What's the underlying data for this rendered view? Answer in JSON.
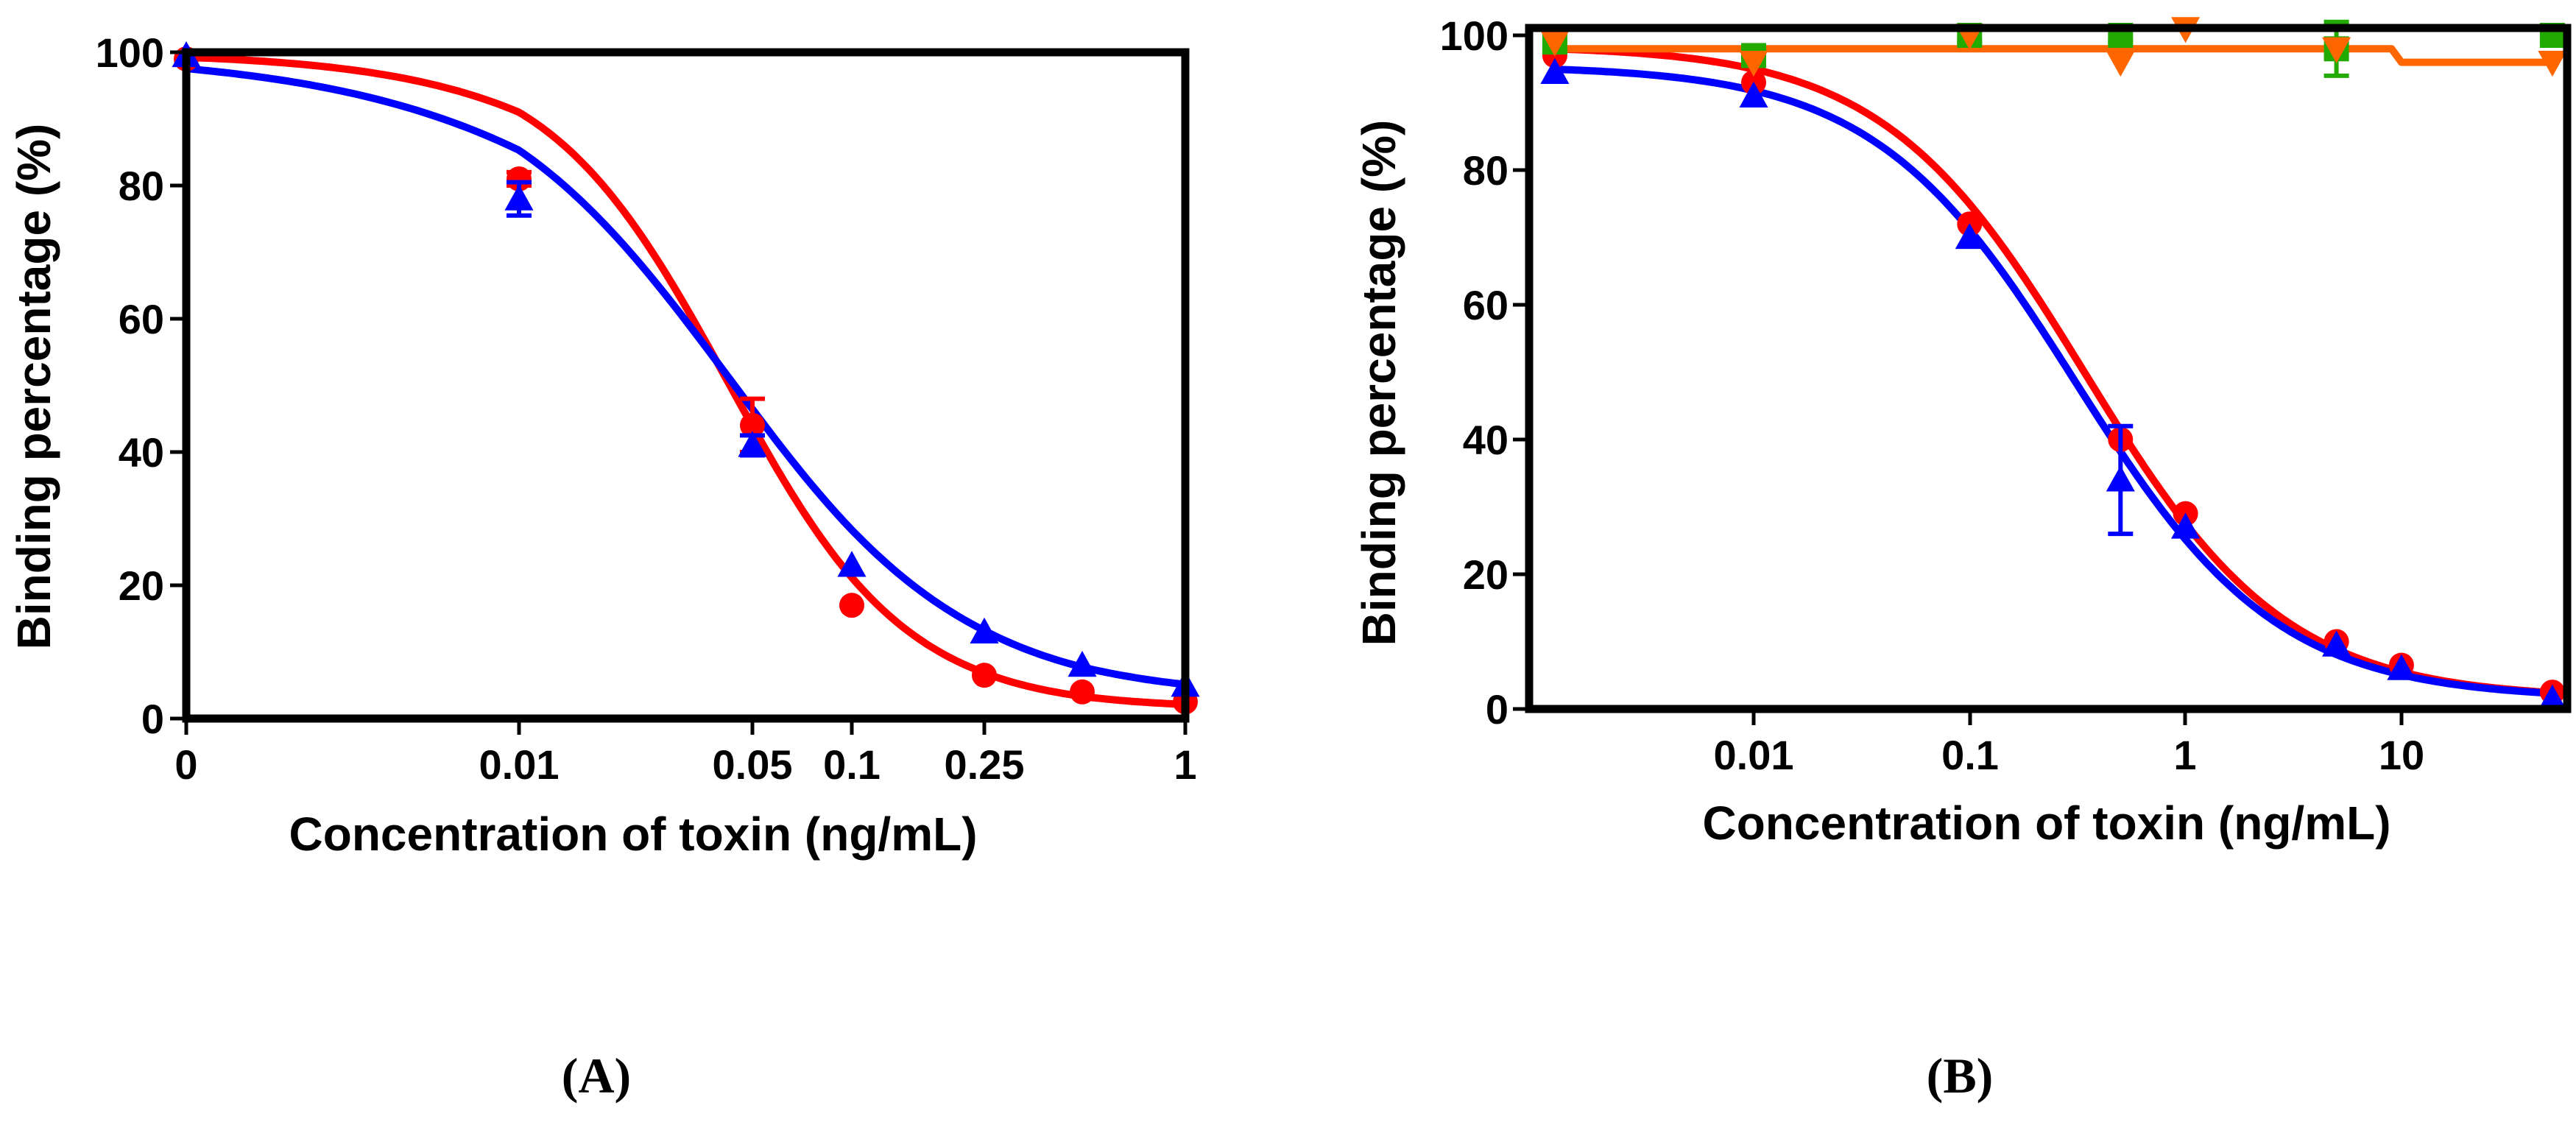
{
  "chart_data": [
    {
      "type": "line",
      "panel_label": "(A)",
      "xlabel": "Concentration of toxin (ng/mL)",
      "ylabel": "Binding percentage (%)",
      "xscale": "log",
      "ylim": [
        0,
        100
      ],
      "xtick_labels": [
        "0",
        "0.01",
        "0.05",
        "0.1",
        "0.25",
        "1"
      ],
      "ytick_labels": [
        "0",
        "20",
        "40",
        "60",
        "80",
        "100"
      ],
      "grid": false,
      "series": [
        {
          "name": "red",
          "color": "#ff0000",
          "marker": "circle",
          "points": [
            {
              "x": "0",
              "y": 99,
              "err": 0
            },
            {
              "x": "0.01",
              "y": 81,
              "err": 1
            },
            {
              "x": "0.05",
              "y": 44,
              "err": 4
            },
            {
              "x": "0.1",
              "y": 17,
              "err": 0
            },
            {
              "x": "0.25",
              "y": 6.5,
              "err": 0
            },
            {
              "x": "0.5",
              "y": 4,
              "err": 0
            },
            {
              "x": "1",
              "y": 2.5,
              "err": 0
            }
          ],
          "curve": {
            "top": 100,
            "bottom": 1.5,
            "ic50": 0.042,
            "hill": 1.6
          }
        },
        {
          "name": "blue",
          "color": "#0000ff",
          "marker": "triangle",
          "points": [
            {
              "x": "0",
              "y": 99.5,
              "err": 0
            },
            {
              "x": "0.01",
              "y": 78,
              "err": 2.5
            },
            {
              "x": "0.05",
              "y": 41,
              "err": 1.5
            },
            {
              "x": "0.1",
              "y": 23,
              "err": 0
            },
            {
              "x": "0.25",
              "y": 13,
              "err": 0
            },
            {
              "x": "0.5",
              "y": 8,
              "err": 0
            },
            {
              "x": "1",
              "y": 5,
              "err": 0
            }
          ],
          "curve": {
            "top": 100,
            "bottom": 3,
            "ic50": 0.042,
            "hill": 1.2
          }
        }
      ]
    },
    {
      "type": "line",
      "panel_label": "(B)",
      "xlabel": "Concentration of toxin (ng/mL)",
      "ylabel": "Binding percentage (%)",
      "xscale": "log",
      "ylim": [
        0,
        100
      ],
      "xtick_labels": [
        "0.01",
        "0.1",
        "1",
        "10"
      ],
      "ytick_labels": [
        "0",
        "20",
        "40",
        "60",
        "80",
        "100"
      ],
      "grid": false,
      "series": [
        {
          "name": "red",
          "color": "#ff0000",
          "marker": "circle",
          "points": [
            {
              "x": 0.0012,
              "y": 97,
              "err": 0
            },
            {
              "x": 0.01,
              "y": 93,
              "err": 0
            },
            {
              "x": 0.1,
              "y": 72,
              "err": 0
            },
            {
              "x": 0.5,
              "y": 40,
              "err": 0
            },
            {
              "x": 1,
              "y": 29,
              "err": 0
            },
            {
              "x": 5,
              "y": 10,
              "err": 0
            },
            {
              "x": 10,
              "y": 6.5,
              "err": 0
            },
            {
              "x": 50,
              "y": 2.5,
              "err": 0
            }
          ],
          "curve": {
            "top": 98.5,
            "bottom": 1.5,
            "ic50": 0.34,
            "hill": 0.93
          }
        },
        {
          "name": "blue",
          "color": "#0000ff",
          "marker": "triangle",
          "points": [
            {
              "x": 0.0012,
              "y": 94.5,
              "err": 0
            },
            {
              "x": 0.01,
              "y": 91,
              "err": 0
            },
            {
              "x": 0.1,
              "y": 70,
              "err": 0
            },
            {
              "x": 0.5,
              "y": 34,
              "err": 8
            },
            {
              "x": 1,
              "y": 27,
              "err": 0
            },
            {
              "x": 5,
              "y": 9.5,
              "err": 0
            },
            {
              "x": 10,
              "y": 6,
              "err": 0
            },
            {
              "x": 50,
              "y": 1.5,
              "err": 0
            }
          ],
          "curve": {
            "top": 95.5,
            "bottom": 1.5,
            "ic50": 0.31,
            "hill": 0.93
          }
        },
        {
          "name": "green",
          "color": "#22aa00",
          "marker": "square",
          "points": [
            {
              "x": 0.0012,
              "y": 99,
              "err": 1.5
            },
            {
              "x": 0.01,
              "y": 97,
              "err": 1.5
            },
            {
              "x": 0.1,
              "y": 100,
              "err": 1
            },
            {
              "x": 0.5,
              "y": 100,
              "err": 1
            },
            {
              "x": 5,
              "y": 98,
              "err": 4
            },
            {
              "x": 50,
              "y": 100,
              "err": 1
            }
          ]
        },
        {
          "name": "orange",
          "color": "#ff6600",
          "marker": "triangle-down",
          "points": [
            {
              "x": 0.0012,
              "y": 99,
              "err": 0
            },
            {
              "x": 0.01,
              "y": 96,
              "err": 0
            },
            {
              "x": 0.1,
              "y": 100,
              "err": 0
            },
            {
              "x": 0.5,
              "y": 96,
              "err": 0
            },
            {
              "x": 1,
              "y": 101,
              "err": 0
            },
            {
              "x": 5,
              "y": 98,
              "err": 0
            },
            {
              "x": 50,
              "y": 96,
              "err": 0
            }
          ],
          "flat_line": [
            {
              "x": 0.0012,
              "y": 98
            },
            {
              "x": 9,
              "y": 98
            },
            {
              "x": 10,
              "y": 96
            },
            {
              "x": 50,
              "y": 96
            }
          ]
        }
      ]
    }
  ]
}
